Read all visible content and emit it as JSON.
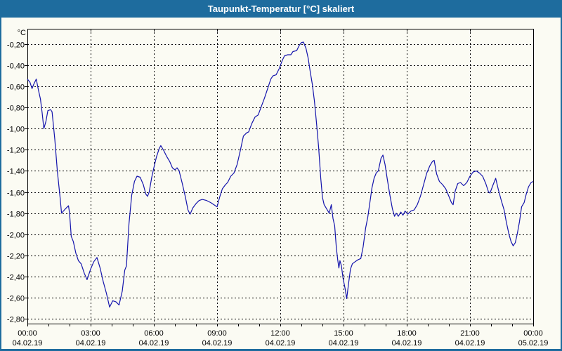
{
  "window": {
    "title": "Taupunkt-Temperatur [°C] skaliert"
  },
  "colors": {
    "titlebar": "#1E6C9E",
    "window_border": "#1E6C9E",
    "window_bg": "#FBFBF3",
    "plot_border": "#000000",
    "grid": "#000000",
    "axis_text": "#000000",
    "series_line": "#1414AC"
  },
  "chart": {
    "y_unit": "°C"
  },
  "chart_data": {
    "type": "line",
    "title": "Taupunkt-Temperatur [°C] skaliert",
    "grid": "dashed",
    "legend": "none",
    "x_axis": {
      "range_hours": [
        0,
        24
      ],
      "major_tick_hours": [
        0,
        3,
        6,
        9,
        12,
        15,
        18,
        21,
        24
      ],
      "tick_time_labels": [
        "00:00",
        "03:00",
        "06:00",
        "09:00",
        "12:00",
        "15:00",
        "18:00",
        "21:00",
        "00:00"
      ],
      "tick_date_labels": [
        "04.02.19",
        "04.02.19",
        "04.02.19",
        "04.02.19",
        "04.02.19",
        "04.02.19",
        "04.02.19",
        "04.02.19",
        "05.02.19"
      ],
      "minor_tick_every_hours": 1
    },
    "y_axis": {
      "unit": "°C",
      "tick_values": [
        -0.2,
        -0.4,
        -0.6,
        -0.8,
        -1.0,
        -1.2,
        -1.4,
        -1.6,
        -1.8,
        -2.0,
        -2.2,
        -2.4,
        -2.6,
        -2.8
      ],
      "tick_labels": [
        "-0,20",
        "-0,40",
        "-0,60",
        "-0,80",
        "-1,00",
        "-1,20",
        "-1,40",
        "-1,60",
        "-1,80",
        "-2,00",
        "-2,20",
        "-2,40",
        "-2,60",
        "-2,80"
      ],
      "ylim": [
        -2.94,
        -0.05
      ]
    },
    "series": [
      {
        "name": "Taupunkt-Temperatur",
        "color": "#1414AC",
        "points": [
          [
            0,
            -0.53
          ],
          [
            0.12,
            -0.56
          ],
          [
            0.22,
            -0.62
          ],
          [
            0.3,
            -0.58
          ],
          [
            0.42,
            -0.53
          ],
          [
            0.52,
            -0.63
          ],
          [
            0.62,
            -0.72
          ],
          [
            0.7,
            -0.85
          ],
          [
            0.78,
            -1.0
          ],
          [
            0.88,
            -0.93
          ],
          [
            0.97,
            -0.83
          ],
          [
            1.1,
            -0.82
          ],
          [
            1.17,
            -0.84
          ],
          [
            1.3,
            -1.1
          ],
          [
            1.42,
            -1.4
          ],
          [
            1.55,
            -1.65
          ],
          [
            1.62,
            -1.8
          ],
          [
            1.8,
            -1.76
          ],
          [
            1.95,
            -1.73
          ],
          [
            2.0,
            -1.8
          ],
          [
            2.08,
            -2.02
          ],
          [
            2.18,
            -2.07
          ],
          [
            2.3,
            -2.18
          ],
          [
            2.42,
            -2.25
          ],
          [
            2.55,
            -2.28
          ],
          [
            2.7,
            -2.37
          ],
          [
            2.83,
            -2.43
          ],
          [
            3.0,
            -2.33
          ],
          [
            3.15,
            -2.26
          ],
          [
            3.3,
            -2.22
          ],
          [
            3.45,
            -2.32
          ],
          [
            3.6,
            -2.45
          ],
          [
            3.75,
            -2.56
          ],
          [
            3.9,
            -2.69
          ],
          [
            4.05,
            -2.63
          ],
          [
            4.2,
            -2.64
          ],
          [
            4.35,
            -2.67
          ],
          [
            4.5,
            -2.54
          ],
          [
            4.62,
            -2.34
          ],
          [
            4.7,
            -2.3
          ],
          [
            4.82,
            -1.9
          ],
          [
            4.95,
            -1.63
          ],
          [
            5.08,
            -1.5
          ],
          [
            5.2,
            -1.45
          ],
          [
            5.35,
            -1.46
          ],
          [
            5.5,
            -1.53
          ],
          [
            5.62,
            -1.62
          ],
          [
            5.7,
            -1.64
          ],
          [
            5.78,
            -1.6
          ],
          [
            5.9,
            -1.46
          ],
          [
            6.0,
            -1.37
          ],
          [
            6.12,
            -1.27
          ],
          [
            6.25,
            -1.19
          ],
          [
            6.33,
            -1.16
          ],
          [
            6.45,
            -1.2
          ],
          [
            6.6,
            -1.26
          ],
          [
            6.75,
            -1.31
          ],
          [
            6.88,
            -1.37
          ],
          [
            7.0,
            -1.39
          ],
          [
            7.1,
            -1.37
          ],
          [
            7.2,
            -1.4
          ],
          [
            7.35,
            -1.52
          ],
          [
            7.5,
            -1.65
          ],
          [
            7.62,
            -1.77
          ],
          [
            7.72,
            -1.81
          ],
          [
            7.85,
            -1.75
          ],
          [
            8.0,
            -1.71
          ],
          [
            8.15,
            -1.68
          ],
          [
            8.3,
            -1.67
          ],
          [
            8.5,
            -1.68
          ],
          [
            8.7,
            -1.7
          ],
          [
            8.85,
            -1.72
          ],
          [
            9.0,
            -1.74
          ],
          [
            9.12,
            -1.65
          ],
          [
            9.25,
            -1.57
          ],
          [
            9.4,
            -1.53
          ],
          [
            9.5,
            -1.51
          ],
          [
            9.65,
            -1.45
          ],
          [
            9.8,
            -1.42
          ],
          [
            9.95,
            -1.34
          ],
          [
            10.1,
            -1.21
          ],
          [
            10.25,
            -1.07
          ],
          [
            10.4,
            -1.04
          ],
          [
            10.5,
            -1.03
          ],
          [
            10.65,
            -0.95
          ],
          [
            10.8,
            -0.89
          ],
          [
            10.95,
            -0.87
          ],
          [
            11.1,
            -0.79
          ],
          [
            11.25,
            -0.71
          ],
          [
            11.4,
            -0.62
          ],
          [
            11.55,
            -0.53
          ],
          [
            11.65,
            -0.5
          ],
          [
            11.8,
            -0.49
          ],
          [
            11.95,
            -0.43
          ],
          [
            12.1,
            -0.35
          ],
          [
            12.2,
            -0.31
          ],
          [
            12.35,
            -0.3
          ],
          [
            12.5,
            -0.3
          ],
          [
            12.6,
            -0.27
          ],
          [
            12.78,
            -0.26
          ],
          [
            12.9,
            -0.21
          ],
          [
            13.0,
            -0.185
          ],
          [
            13.1,
            -0.18
          ],
          [
            13.22,
            -0.24
          ],
          [
            13.32,
            -0.33
          ],
          [
            13.42,
            -0.46
          ],
          [
            13.52,
            -0.58
          ],
          [
            13.62,
            -0.74
          ],
          [
            13.72,
            -0.95
          ],
          [
            13.82,
            -1.18
          ],
          [
            13.92,
            -1.47
          ],
          [
            14.0,
            -1.65
          ],
          [
            14.08,
            -1.72
          ],
          [
            14.2,
            -1.76
          ],
          [
            14.32,
            -1.8
          ],
          [
            14.42,
            -1.72
          ],
          [
            14.5,
            -1.85
          ],
          [
            14.58,
            -1.92
          ],
          [
            14.66,
            -2.13
          ],
          [
            14.73,
            -2.25
          ],
          [
            14.78,
            -2.32
          ],
          [
            14.83,
            -2.25
          ],
          [
            14.9,
            -2.3
          ],
          [
            14.98,
            -2.42
          ],
          [
            15.08,
            -2.52
          ],
          [
            15.15,
            -2.61
          ],
          [
            15.25,
            -2.45
          ],
          [
            15.33,
            -2.33
          ],
          [
            15.42,
            -2.28
          ],
          [
            15.55,
            -2.26
          ],
          [
            15.7,
            -2.24
          ],
          [
            15.82,
            -2.23
          ],
          [
            15.93,
            -2.12
          ],
          [
            16.05,
            -1.94
          ],
          [
            16.15,
            -1.84
          ],
          [
            16.25,
            -1.7
          ],
          [
            16.35,
            -1.56
          ],
          [
            16.45,
            -1.47
          ],
          [
            16.55,
            -1.42
          ],
          [
            16.65,
            -1.4
          ],
          [
            16.78,
            -1.28
          ],
          [
            16.87,
            -1.25
          ],
          [
            16.97,
            -1.34
          ],
          [
            17.07,
            -1.47
          ],
          [
            17.2,
            -1.63
          ],
          [
            17.32,
            -1.76
          ],
          [
            17.42,
            -1.83
          ],
          [
            17.5,
            -1.8
          ],
          [
            17.6,
            -1.83
          ],
          [
            17.72,
            -1.79
          ],
          [
            17.82,
            -1.82
          ],
          [
            17.92,
            -1.78
          ],
          [
            18.05,
            -1.81
          ],
          [
            18.2,
            -1.78
          ],
          [
            18.35,
            -1.77
          ],
          [
            18.5,
            -1.72
          ],
          [
            18.65,
            -1.64
          ],
          [
            18.8,
            -1.53
          ],
          [
            18.95,
            -1.42
          ],
          [
            19.1,
            -1.35
          ],
          [
            19.22,
            -1.31
          ],
          [
            19.3,
            -1.3
          ],
          [
            19.42,
            -1.43
          ],
          [
            19.55,
            -1.5
          ],
          [
            19.7,
            -1.53
          ],
          [
            19.85,
            -1.57
          ],
          [
            20.0,
            -1.64
          ],
          [
            20.12,
            -1.7
          ],
          [
            20.2,
            -1.72
          ],
          [
            20.3,
            -1.59
          ],
          [
            20.42,
            -1.52
          ],
          [
            20.55,
            -1.51
          ],
          [
            20.7,
            -1.54
          ],
          [
            20.85,
            -1.51
          ],
          [
            21.0,
            -1.45
          ],
          [
            21.15,
            -1.41
          ],
          [
            21.3,
            -1.4
          ],
          [
            21.45,
            -1.42
          ],
          [
            21.6,
            -1.45
          ],
          [
            21.75,
            -1.52
          ],
          [
            21.88,
            -1.6
          ],
          [
            21.95,
            -1.61
          ],
          [
            22.1,
            -1.53
          ],
          [
            22.22,
            -1.47
          ],
          [
            22.35,
            -1.58
          ],
          [
            22.5,
            -1.69
          ],
          [
            22.62,
            -1.77
          ],
          [
            22.72,
            -1.88
          ],
          [
            22.85,
            -2.0
          ],
          [
            22.95,
            -2.07
          ],
          [
            23.05,
            -2.11
          ],
          [
            23.15,
            -2.08
          ],
          [
            23.25,
            -1.99
          ],
          [
            23.35,
            -1.88
          ],
          [
            23.45,
            -1.74
          ],
          [
            23.57,
            -1.7
          ],
          [
            23.67,
            -1.62
          ],
          [
            23.78,
            -1.55
          ],
          [
            23.9,
            -1.51
          ],
          [
            24,
            -1.5
          ]
        ]
      }
    ]
  }
}
